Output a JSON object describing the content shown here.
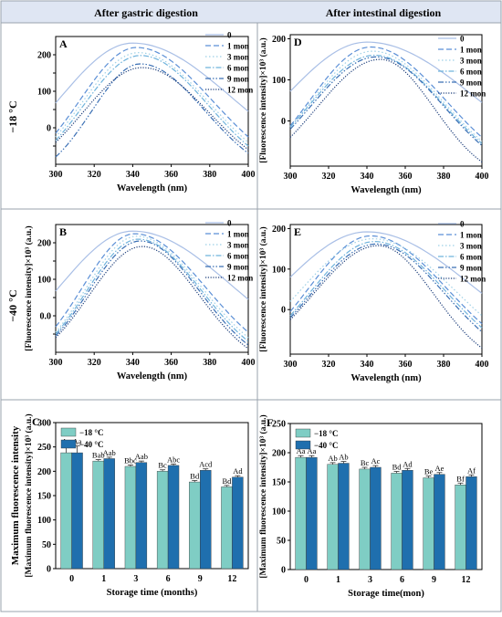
{
  "headers": {
    "gastric": "After gastric digestion",
    "intestinal": "After intestinal digestion"
  },
  "row_labels": {
    "minus18": "−18 °C",
    "minus40": "−40 °C"
  },
  "colors": {
    "header_bg": "#dfe6f3",
    "grid_line": "#9aa3ad",
    "bar_light": "#7fcdc4",
    "bar_dark": "#1f6fae",
    "series": [
      "#a9bfe6",
      "#5b8fd6",
      "#9dd0e6",
      "#6fb3dc",
      "#3a6fb4",
      "#1c3d7a"
    ]
  },
  "chart_data": [
    {
      "id": "A",
      "type": "line",
      "panel_label": "A",
      "xlabel": "Wavelength (nm)",
      "ylabel": "[Fluorescence intensity]×10³ (a.u.)",
      "show_ylabel": false,
      "xlim": [
        300,
        400
      ],
      "ylim": [
        -100,
        250
      ],
      "xticks": [
        300,
        320,
        340,
        360,
        380,
        400
      ],
      "yticks": [
        -50,
        0,
        50,
        100,
        150,
        200
      ],
      "yticklabels": [
        "",
        "0",
        "",
        "100",
        "",
        "200"
      ],
      "series": [
        {
          "name": "0",
          "dash": "solid",
          "peak_x": 340,
          "peak_y": 232,
          "end_y": [
            68,
            45
          ]
        },
        {
          "name": "1 mon",
          "dash": "dash",
          "peak_x": 342,
          "peak_y": 220,
          "end_y": [
            -15,
            -25
          ]
        },
        {
          "name": "3 mon",
          "dash": "dot",
          "peak_x": 343,
          "peak_y": 206,
          "end_y": [
            -25,
            -40
          ]
        },
        {
          "name": "6 mon",
          "dash": "dashdot",
          "peak_x": 344,
          "peak_y": 198,
          "end_y": [
            -35,
            -50
          ]
        },
        {
          "name": "9 mon",
          "dash": "dashdotdot",
          "peak_x": 344,
          "peak_y": 175,
          "end_y": [
            -80,
            -70
          ]
        },
        {
          "name": "12 mon",
          "dash": "densedot",
          "peak_x": 345,
          "peak_y": 165,
          "end_y": [
            -40,
            -60
          ]
        }
      ]
    },
    {
      "id": "D",
      "type": "line",
      "panel_label": "D",
      "xlabel": "Wavelength (nm)",
      "ylabel": "[Fluorescence intensity]×10³ (a.u.)",
      "show_ylabel": true,
      "xlim": [
        300,
        400
      ],
      "ylim": [
        -110,
        210
      ],
      "xticks": [
        300,
        320,
        340,
        360,
        380,
        400
      ],
      "yticks": [
        0,
        100,
        200
      ],
      "yticklabels": [
        "0",
        "100",
        "200"
      ],
      "series": [
        {
          "name": "0",
          "dash": "solid",
          "peak_x": 340,
          "peak_y": 192,
          "end_y": [
            72,
            45
          ]
        },
        {
          "name": "1 mon",
          "dash": "dash",
          "peak_x": 342,
          "peak_y": 180,
          "end_y": [
            -12,
            -40
          ]
        },
        {
          "name": "3 mon",
          "dash": "dot",
          "peak_x": 343,
          "peak_y": 170,
          "end_y": [
            -15,
            -50
          ]
        },
        {
          "name": "6 mon",
          "dash": "dashdot",
          "peak_x": 344,
          "peak_y": 160,
          "end_y": [
            -15,
            -55
          ]
        },
        {
          "name": "9 mon",
          "dash": "dashdotdot",
          "peak_x": 345,
          "peak_y": 156,
          "end_y": [
            -20,
            -60
          ]
        },
        {
          "name": "12 mon",
          "dash": "densedot",
          "peak_x": 347,
          "peak_y": 150,
          "end_y": [
            -40,
            -100
          ]
        }
      ]
    },
    {
      "id": "B",
      "type": "line",
      "panel_label": "B",
      "xlabel": "Wavelength (nm)",
      "ylabel": "[Fluorescence intensity]×10³ (a.u.)",
      "show_ylabel": true,
      "xlim": [
        300,
        400
      ],
      "ylim": [
        -100,
        250
      ],
      "xticks": [
        300,
        320,
        340,
        360,
        380,
        400
      ],
      "yticks": [
        -50,
        0,
        50,
        100,
        150,
        200
      ],
      "yticklabels": [
        "",
        "0.0",
        "",
        "100",
        "",
        "200"
      ],
      "series": [
        {
          "name": "0",
          "dash": "solid",
          "peak_x": 340,
          "peak_y": 232,
          "end_y": [
            68,
            45
          ]
        },
        {
          "name": "1 mon",
          "dash": "dash",
          "peak_x": 341,
          "peak_y": 225,
          "end_y": [
            -30,
            -45
          ]
        },
        {
          "name": "3 mon",
          "dash": "dot",
          "peak_x": 342,
          "peak_y": 218,
          "end_y": [
            -45,
            -60
          ]
        },
        {
          "name": "6 mon",
          "dash": "dashdot",
          "peak_x": 343,
          "peak_y": 210,
          "end_y": [
            -50,
            -70
          ]
        },
        {
          "name": "9 mon",
          "dash": "dashdotdot",
          "peak_x": 344,
          "peak_y": 205,
          "end_y": [
            -55,
            -80
          ]
        },
        {
          "name": "12 mon",
          "dash": "densedot",
          "peak_x": 345,
          "peak_y": 190,
          "end_y": [
            -60,
            -90
          ]
        }
      ]
    },
    {
      "id": "E",
      "type": "line",
      "panel_label": "E",
      "xlabel": "Wavelength (nm)",
      "ylabel": "[Fluorescence intensity]×10³ (a.u.)",
      "show_ylabel": true,
      "xlim": [
        300,
        400
      ],
      "ylim": [
        -110,
        210
      ],
      "xticks": [
        300,
        320,
        340,
        360,
        380,
        400
      ],
      "yticks": [
        0,
        100,
        200
      ],
      "yticklabels": [
        "0",
        "100",
        "200"
      ],
      "series": [
        {
          "name": "0",
          "dash": "solid",
          "peak_x": 340,
          "peak_y": 192,
          "end_y": [
            80,
            40
          ]
        },
        {
          "name": "1 mon",
          "dash": "dash",
          "peak_x": 342,
          "peak_y": 182,
          "end_y": [
            -5,
            -35
          ]
        },
        {
          "name": "3 mon",
          "dash": "dot",
          "peak_x": 343,
          "peak_y": 175,
          "end_y": [
            20,
            -15
          ]
        },
        {
          "name": "6 mon",
          "dash": "dashdot",
          "peak_x": 344,
          "peak_y": 168,
          "end_y": [
            -15,
            -45
          ]
        },
        {
          "name": "9 mon",
          "dash": "dashdotdot",
          "peak_x": 345,
          "peak_y": 162,
          "end_y": [
            -20,
            -55
          ]
        },
        {
          "name": "12 mon",
          "dash": "densedot",
          "peak_x": 346,
          "peak_y": 158,
          "end_y": [
            -25,
            -95
          ]
        }
      ]
    },
    {
      "id": "C",
      "type": "bar",
      "panel_label": "C",
      "xlabel": "Storage time (months)",
      "ylabel_outer": "Maximum fluorescence intensity",
      "ylabel": "[Maximum fluorescence intensity]×10³ (a.u.)",
      "categories": [
        "0",
        "1",
        "3",
        "6",
        "9",
        "12"
      ],
      "ylim": [
        0,
        300
      ],
      "yticks": [
        0,
        50,
        100,
        150,
        200,
        250,
        300
      ],
      "legend": [
        "−18 °C",
        "−40 °C"
      ],
      "series": [
        {
          "name": "−18 °C",
          "values": [
            238,
            221,
            210,
            200,
            178,
            168
          ],
          "errors": [
            14,
            3,
            3,
            3,
            3,
            3
          ],
          "labels": [
            "Aa",
            "Bab",
            "Bbc",
            "Bc",
            "Bd",
            "Bd"
          ]
        },
        {
          "name": "−40 °C",
          "values": [
            238,
            226,
            218,
            212,
            202,
            188
          ],
          "errors": [
            14,
            3,
            3,
            3,
            3,
            3
          ],
          "labels": [
            "Aa",
            "Aab",
            "Aab",
            "Abc",
            "Acd",
            "Ad"
          ]
        }
      ]
    },
    {
      "id": "F",
      "type": "bar",
      "panel_label": "F",
      "xlabel": "Storage time(mon)",
      "ylabel": "[Maximum fluorescence intensity]×10³ (a.u.)",
      "categories": [
        "0",
        "1",
        "3",
        "6",
        "9",
        "12"
      ],
      "ylim": [
        0,
        250
      ],
      "yticks": [
        0,
        50,
        100,
        150,
        200,
        250
      ],
      "legend": [
        "−18 °C",
        "−40 °C"
      ],
      "series": [
        {
          "name": "−18 °C",
          "values": [
            192,
            180,
            172,
            165,
            157,
            145
          ],
          "errors": [
            3,
            3,
            3,
            3,
            3,
            3
          ],
          "labels": [
            "Aa",
            "Ab",
            "Bc",
            "Bd",
            "Be",
            "Bf"
          ]
        },
        {
          "name": "−40 °C",
          "values": [
            192,
            182,
            175,
            170,
            163,
            159
          ],
          "errors": [
            3,
            3,
            3,
            3,
            3,
            3
          ],
          "labels": [
            "Aa",
            "Ab",
            "Ac",
            "Ad",
            "Ae",
            "Af"
          ]
        }
      ]
    }
  ]
}
